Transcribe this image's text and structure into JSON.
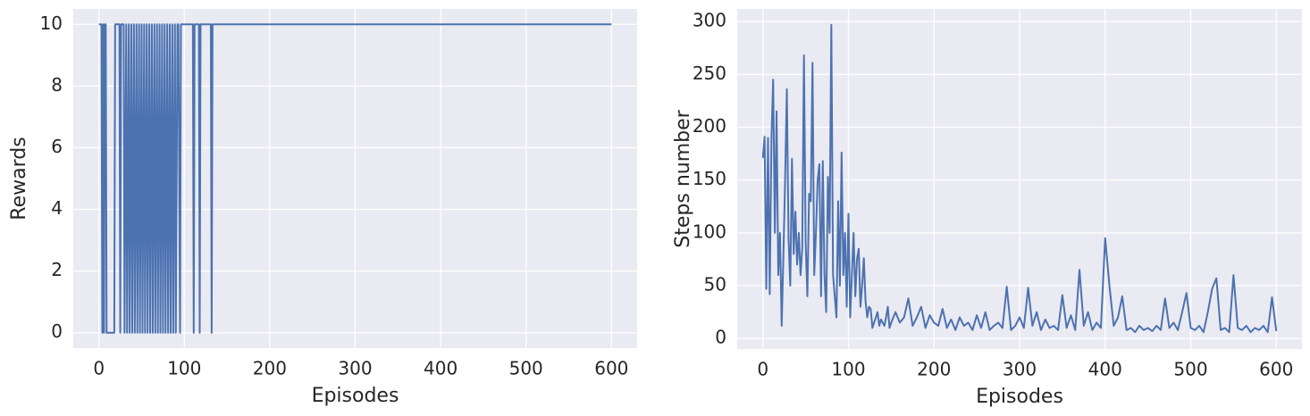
{
  "chart_data": [
    {
      "type": "line",
      "xlabel": "Episodes",
      "ylabel": "Rewards",
      "color": "#4c72b0",
      "grid": true,
      "xlim": [
        -30,
        630
      ],
      "ylim": [
        -0.5,
        10.5
      ],
      "xticks": [
        0,
        100,
        200,
        300,
        400,
        500,
        600
      ],
      "yticks": [
        0,
        2,
        4,
        6,
        8,
        10
      ],
      "x": [
        0,
        3,
        4,
        5,
        6,
        7,
        8,
        9,
        10,
        18,
        19,
        20,
        24,
        25,
        26,
        29,
        30,
        32,
        33,
        35,
        36,
        38,
        39,
        41,
        42,
        44,
        45,
        47,
        48,
        50,
        51,
        53,
        54,
        56,
        57,
        59,
        60,
        62,
        63,
        65,
        66,
        68,
        69,
        71,
        72,
        74,
        75,
        77,
        78,
        80,
        81,
        83,
        84,
        86,
        87,
        89,
        90,
        92,
        93,
        95,
        96,
        98,
        110,
        111,
        112,
        117,
        118,
        119,
        131,
        132,
        133,
        600
      ],
      "values": [
        10,
        10,
        0,
        10,
        0,
        10,
        10,
        0,
        0,
        0,
        10,
        10,
        10,
        0,
        10,
        10,
        0,
        10,
        0,
        10,
        0,
        10,
        0,
        10,
        0,
        10,
        0,
        10,
        0,
        10,
        0,
        10,
        0,
        10,
        0,
        10,
        0,
        10,
        0,
        10,
        0,
        10,
        0,
        10,
        0,
        10,
        0,
        10,
        0,
        10,
        0,
        10,
        0,
        10,
        0,
        10,
        0,
        10,
        10,
        0,
        10,
        10,
        10,
        0,
        10,
        10,
        0,
        10,
        10,
        0,
        10,
        10
      ]
    },
    {
      "type": "line",
      "xlabel": "Episodes",
      "ylabel": "Steps number",
      "color": "#4c72b0",
      "grid": true,
      "xlim": [
        -30,
        630
      ],
      "ylim": [
        -10,
        312
      ],
      "xticks": [
        0,
        100,
        200,
        300,
        400,
        500,
        600
      ],
      "yticks": [
        0,
        50,
        100,
        150,
        200,
        250,
        300
      ],
      "x": [
        0,
        2,
        4,
        6,
        8,
        10,
        12,
        14,
        16,
        18,
        20,
        22,
        24,
        26,
        28,
        30,
        32,
        34,
        36,
        38,
        40,
        42,
        44,
        46,
        48,
        50,
        52,
        54,
        56,
        58,
        60,
        62,
        64,
        66,
        68,
        70,
        72,
        74,
        76,
        78,
        80,
        82,
        84,
        86,
        88,
        90,
        92,
        94,
        96,
        98,
        100,
        102,
        104,
        106,
        108,
        110,
        112,
        114,
        116,
        118,
        120,
        122,
        124,
        126,
        128,
        130,
        132,
        134,
        136,
        138,
        140,
        142,
        144,
        146,
        148,
        150,
        155,
        160,
        165,
        170,
        175,
        180,
        185,
        190,
        195,
        200,
        205,
        210,
        215,
        220,
        225,
        230,
        235,
        240,
        245,
        250,
        255,
        260,
        265,
        270,
        275,
        280,
        285,
        290,
        295,
        300,
        305,
        310,
        315,
        320,
        325,
        330,
        335,
        340,
        345,
        350,
        355,
        360,
        365,
        370,
        375,
        380,
        385,
        390,
        395,
        400,
        405,
        410,
        415,
        420,
        425,
        430,
        435,
        440,
        445,
        450,
        455,
        460,
        465,
        470,
        475,
        480,
        485,
        490,
        495,
        500,
        505,
        510,
        515,
        520,
        525,
        530,
        535,
        540,
        545,
        550,
        555,
        560,
        565,
        570,
        575,
        580,
        585,
        590,
        595,
        600
      ],
      "values": [
        171,
        191,
        47,
        190,
        42,
        188,
        245,
        100,
        215,
        60,
        100,
        12,
        80,
        150,
        236,
        95,
        50,
        170,
        80,
        120,
        70,
        100,
        60,
        85,
        268,
        90,
        40,
        137,
        130,
        261,
        60,
        100,
        150,
        165,
        40,
        168,
        60,
        25,
        153,
        100,
        297,
        60,
        40,
        20,
        130,
        50,
        176,
        60,
        100,
        30,
        118,
        20,
        60,
        100,
        40,
        75,
        85,
        30,
        50,
        76,
        35,
        20,
        30,
        28,
        10,
        15,
        20,
        25,
        12,
        18,
        15,
        12,
        20,
        30,
        10,
        15,
        25,
        15,
        20,
        38,
        12,
        20,
        30,
        10,
        22,
        15,
        12,
        28,
        10,
        18,
        8,
        20,
        12,
        15,
        8,
        22,
        10,
        25,
        8,
        12,
        15,
        10,
        49,
        8,
        12,
        20,
        10,
        48,
        12,
        25,
        8,
        18,
        10,
        12,
        8,
        41,
        10,
        22,
        8,
        65,
        12,
        25,
        8,
        15,
        10,
        95,
        50,
        12,
        20,
        40,
        8,
        10,
        6,
        12,
        8,
        10,
        7,
        12,
        8,
        38,
        10,
        15,
        8,
        25,
        43,
        10,
        8,
        12,
        6,
        25,
        47,
        57,
        8,
        10,
        6,
        60,
        10,
        8,
        12,
        6,
        10,
        8,
        12,
        6,
        39,
        7
      ]
    }
  ]
}
